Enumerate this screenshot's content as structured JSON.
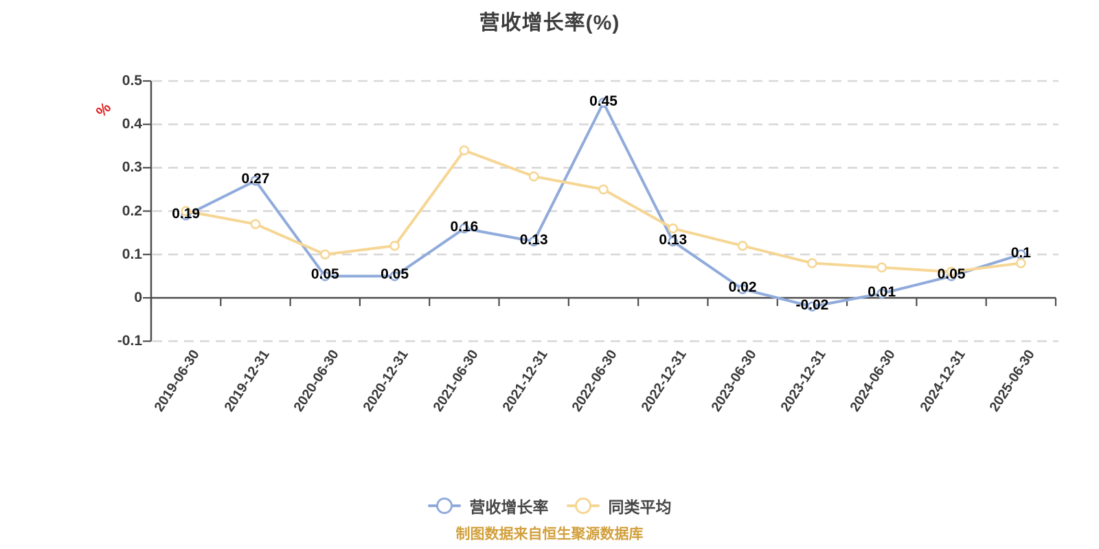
{
  "header": {
    "title": "营收增长率(%)"
  },
  "y_axis": {
    "unit": "%",
    "unit_color": "#e02020"
  },
  "chart_data": {
    "type": "line",
    "title": "营收增长率(%)",
    "categories": [
      "2019-06-30",
      "2019-12-31",
      "2020-06-30",
      "2020-12-31",
      "2021-06-30",
      "2021-12-31",
      "2022-06-30",
      "2022-12-31",
      "2023-06-30",
      "2023-12-31",
      "2024-06-30",
      "2024-12-31",
      "2025-06-30"
    ],
    "series": [
      {
        "name": "营收增长率",
        "color": "#90abdb",
        "values": [
          0.19,
          0.27,
          0.05,
          0.05,
          0.16,
          0.13,
          0.45,
          0.13,
          0.02,
          -0.02,
          0.01,
          0.05,
          0.1
        ],
        "labels": [
          "0.19",
          "0.27",
          "0.05",
          "0.05",
          "0.16",
          "0.13",
          "0.45",
          "0.13",
          "0.02",
          "-0.02",
          "0.01",
          "0.05",
          "0.1"
        ],
        "show_labels": true
      },
      {
        "name": "同类平均",
        "color": "#f6d694",
        "values": [
          0.2,
          0.17,
          0.1,
          0.12,
          0.34,
          0.28,
          0.25,
          0.16,
          0.12,
          0.08,
          0.07,
          0.06,
          0.08
        ],
        "labels": [],
        "show_labels": false
      }
    ],
    "ylim": [
      -0.1,
      0.5
    ],
    "yticks": [
      0.5,
      0.4,
      0.3,
      0.2,
      0.1,
      0,
      -0.1
    ],
    "ytick_labels": [
      "0.5",
      "0.4",
      "0.3",
      "0.2",
      "0.1",
      "0",
      "-0.1"
    ],
    "grid": "dashed",
    "grid_color": "#d8d8d8",
    "axis_color": "#4d4d4d",
    "legend_position": "bottom",
    "marker": "circle-white-fill"
  },
  "legend": {
    "items": [
      {
        "label": "营收增长率",
        "color": "#90abdb"
      },
      {
        "label": "同类平均",
        "color": "#f6d694"
      }
    ]
  },
  "caption": {
    "text": "制图数据来自恒生聚源数据库",
    "color": "#d2a03c"
  }
}
